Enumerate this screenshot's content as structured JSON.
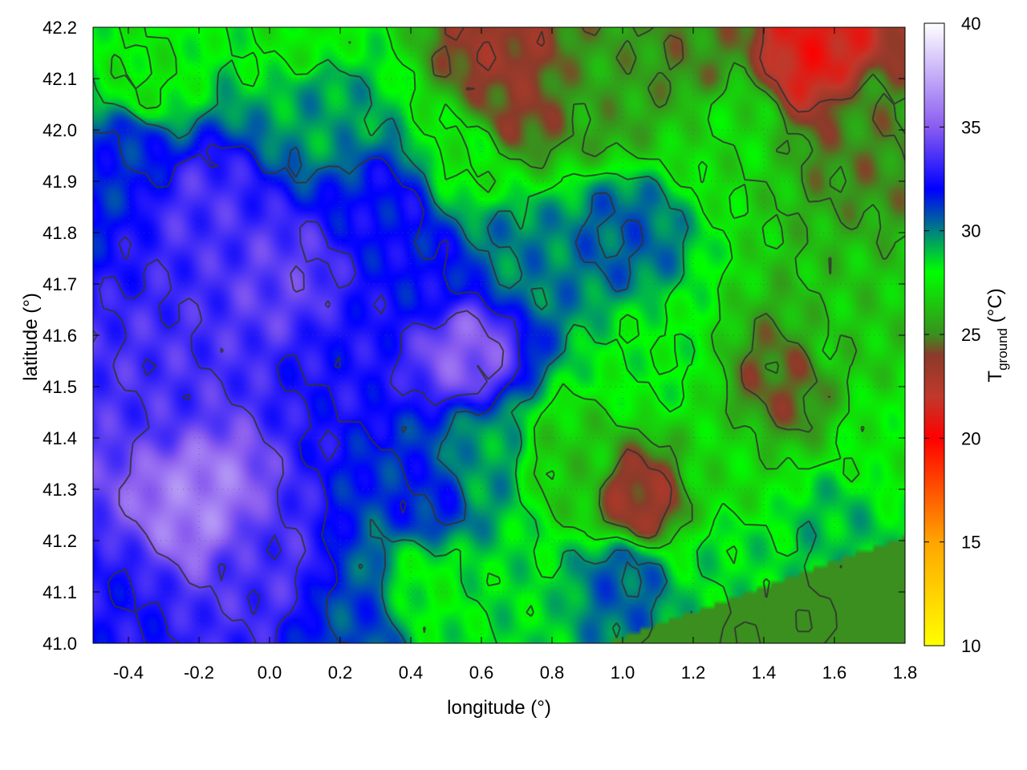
{
  "chart_data": {
    "type": "heatmap",
    "title": "",
    "xlabel": "longitude (°)",
    "ylabel": "latitude (°)",
    "xlim": [
      -0.5,
      1.8
    ],
    "ylim": [
      41.0,
      42.2
    ],
    "x_ticks": [
      -0.4,
      -0.2,
      0.0,
      0.2,
      0.4,
      0.6,
      0.8,
      1.0,
      1.2,
      1.4,
      1.6,
      1.8
    ],
    "x_tick_labels": [
      "-0.4",
      "-0.2",
      "0.0",
      "0.2",
      "0.4",
      "0.6",
      "0.8",
      "1.0",
      "1.2",
      "1.4",
      "1.6",
      "1.8"
    ],
    "y_ticks": [
      41.0,
      41.1,
      41.2,
      41.3,
      41.4,
      41.5,
      41.6,
      41.7,
      41.8,
      41.9,
      42.0,
      42.1,
      42.2
    ],
    "y_tick_labels": [
      "41.0",
      "41.1",
      "41.2",
      "41.3",
      "41.4",
      "41.5",
      "41.6",
      "41.7",
      "41.8",
      "41.9",
      "42.0",
      "42.1",
      "42.2"
    ],
    "colorbar": {
      "label_main": "T",
      "label_sub": "ground",
      "label_unit": " (°C)",
      "range": [
        10,
        40
      ],
      "ticks": [
        10,
        15,
        20,
        25,
        30,
        35,
        40
      ],
      "tick_labels": [
        "10",
        "15",
        "20",
        "25",
        "30",
        "35",
        "40"
      ],
      "colormap": [
        [
          10,
          "#ffff00"
        ],
        [
          15,
          "#ffa500"
        ],
        [
          20,
          "#ff0000"
        ],
        [
          22,
          "#c0392b"
        ],
        [
          24,
          "#8b3a2a"
        ],
        [
          25,
          "#3a8f1e"
        ],
        [
          28,
          "#00ff00"
        ],
        [
          30,
          "#008080"
        ],
        [
          32,
          "#0000ff"
        ],
        [
          35,
          "#8a5cf0"
        ],
        [
          40,
          "#ffffff"
        ]
      ]
    },
    "field_anchors": [
      {
        "lon": -0.35,
        "lat": 42.1,
        "t": 27.5
      },
      {
        "lon": -0.4,
        "lat": 41.95,
        "t": 31.5
      },
      {
        "lon": -0.2,
        "lat": 41.85,
        "t": 33.5
      },
      {
        "lon": -0.3,
        "lat": 41.5,
        "t": 33.5
      },
      {
        "lon": -0.2,
        "lat": 41.28,
        "t": 36.0
      },
      {
        "lon": -0.45,
        "lat": 41.05,
        "t": 32.5
      },
      {
        "lon": 0.0,
        "lat": 41.15,
        "t": 33.5
      },
      {
        "lon": 0.05,
        "lat": 41.7,
        "t": 34.0
      },
      {
        "lon": 0.2,
        "lat": 41.55,
        "t": 32.5
      },
      {
        "lon": 0.15,
        "lat": 42.05,
        "t": 29.5
      },
      {
        "lon": 0.1,
        "lat": 42.18,
        "t": 27.5
      },
      {
        "lon": 0.35,
        "lat": 41.85,
        "t": 32.0
      },
      {
        "lon": 0.55,
        "lat": 41.58,
        "t": 35.0
      },
      {
        "lon": 0.45,
        "lat": 41.7,
        "t": 32.0
      },
      {
        "lon": 0.7,
        "lat": 41.75,
        "t": 30.0
      },
      {
        "lon": 0.55,
        "lat": 41.95,
        "t": 27.5
      },
      {
        "lon": 0.7,
        "lat": 42.05,
        "t": 24.0
      },
      {
        "lon": 0.65,
        "lat": 42.15,
        "t": 23.5
      },
      {
        "lon": 0.95,
        "lat": 42.05,
        "t": 25.5
      },
      {
        "lon": 1.2,
        "lat": 42.15,
        "t": 25.0
      },
      {
        "lon": 1.55,
        "lat": 42.15,
        "t": 21.0
      },
      {
        "lon": 1.7,
        "lat": 42.02,
        "t": 25.0
      },
      {
        "lon": 1.3,
        "lat": 42.0,
        "t": 27.0
      },
      {
        "lon": 1.0,
        "lat": 41.8,
        "t": 30.5
      },
      {
        "lon": 1.1,
        "lat": 41.55,
        "t": 28.0
      },
      {
        "lon": 1.45,
        "lat": 41.5,
        "t": 24.5
      },
      {
        "lon": 1.65,
        "lat": 41.6,
        "t": 26.5
      },
      {
        "lon": 1.75,
        "lat": 41.4,
        "t": 27.5
      },
      {
        "lon": 1.3,
        "lat": 41.35,
        "t": 27.0
      },
      {
        "lon": 1.05,
        "lat": 41.28,
        "t": 23.5
      },
      {
        "lon": 0.85,
        "lat": 41.35,
        "t": 26.5
      },
      {
        "lon": 0.6,
        "lat": 41.35,
        "t": 29.5
      },
      {
        "lon": 0.45,
        "lat": 41.3,
        "t": 31.5
      },
      {
        "lon": 0.45,
        "lat": 41.1,
        "t": 28.0
      },
      {
        "lon": 0.25,
        "lat": 41.05,
        "t": 31.0
      },
      {
        "lon": 0.7,
        "lat": 41.1,
        "t": 28.5
      },
      {
        "lon": 1.0,
        "lat": 41.12,
        "t": 30.5
      },
      {
        "lon": 1.3,
        "lat": 41.15,
        "t": 28.5
      },
      {
        "lon": 1.6,
        "lat": 41.22,
        "t": 29.0
      }
    ],
    "sea_region_value": 25.0,
    "contours_shown": true,
    "grid": true
  }
}
